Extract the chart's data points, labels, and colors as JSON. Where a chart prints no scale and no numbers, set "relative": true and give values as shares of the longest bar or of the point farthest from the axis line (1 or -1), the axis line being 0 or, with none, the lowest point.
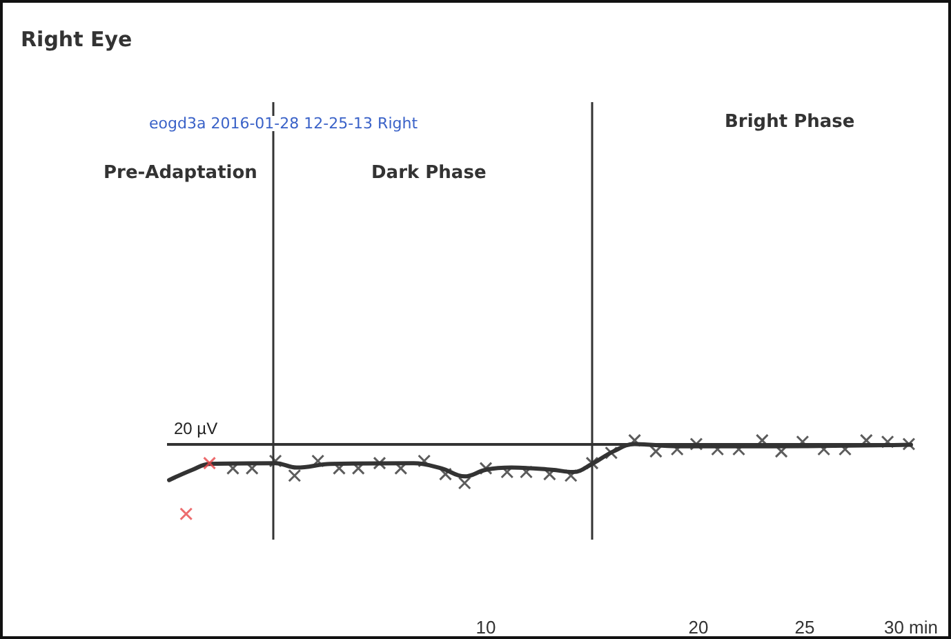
{
  "chart_data": {
    "type": "line",
    "title": "Right Eye",
    "annotations": [
      "eogd3a 2016-01-28 12-25-13 Right",
      "Pre-Adaptation",
      "Dark Phase",
      "Bright Phase"
    ],
    "relative": true,
    "marker": "cross",
    "grid": false,
    "legend": false,
    "xlim": [
      -5,
      30
    ],
    "xticks": [
      10,
      20,
      25,
      {
        "value": 30,
        "label": "30 min"
      }
    ],
    "series": [
      {
        "marker": "none",
        "color": "#333333",
        "x": [
          -4.9,
          -3.8,
          -3.0,
          0.1,
          1.1,
          2.7,
          6.6,
          7.9,
          9.0,
          10.0,
          11.2,
          13.1,
          14.1,
          15.0,
          16.0,
          17.0,
          19.0,
          23.5,
          30.0
        ],
        "values": [
          0.46,
          0.6,
          0.68,
          0.69,
          0.63,
          0.68,
          0.69,
          0.62,
          0.51,
          0.6,
          0.63,
          0.6,
          0.57,
          0.68,
          0.85,
          0.95,
          0.92,
          0.92,
          0.94
        ]
      },
      {
        "type": "scatter",
        "color": "#333333",
        "x": [
          -1.9,
          -1.0,
          0.1,
          1.0,
          2.1,
          3.1,
          4.0,
          5.0,
          6.0,
          7.1,
          8.1,
          9.0,
          10.0,
          11.0,
          11.9,
          13.0,
          14.0,
          15.0,
          15.9,
          17.0,
          18.0,
          19.0,
          19.9,
          20.9,
          21.9,
          23.0,
          23.9,
          24.9,
          25.9,
          26.9,
          27.9,
          28.9,
          29.9
        ],
        "values": [
          0.62,
          0.62,
          0.72,
          0.52,
          0.72,
          0.62,
          0.62,
          0.69,
          0.62,
          0.72,
          0.54,
          0.42,
          0.62,
          0.57,
          0.57,
          0.54,
          0.52,
          0.69,
          0.83,
          1.0,
          0.85,
          0.88,
          0.95,
          0.88,
          0.88,
          1.0,
          0.85,
          0.98,
          0.88,
          0.88,
          1.0,
          0.98,
          0.95
        ]
      },
      {
        "type": "scatter",
        "color": "#e8474a",
        "x": [
          -3.0,
          -4.1
        ],
        "values": [
          0.69,
          0.0
        ]
      }
    ],
    "ref_lines": [
      {
        "axis": "x",
        "value": 0,
        "color": "#333333"
      },
      {
        "axis": "x",
        "value": 15,
        "color": "#333333"
      },
      {
        "axis": "y",
        "value": 0.95,
        "label": "20 µV",
        "color": "#333333"
      }
    ]
  }
}
